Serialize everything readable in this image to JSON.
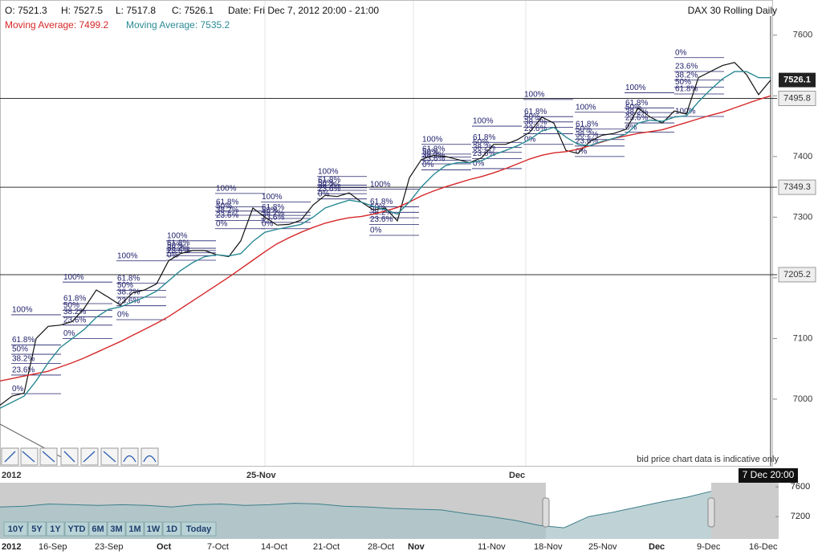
{
  "header": {
    "open": "O: 7521.3",
    "high": "H: 7527.5",
    "low": "L: 7517.8",
    "close": "C: 7526.1",
    "date": "Date: Fri Dec 7, 2012 20:00 - 21:00",
    "instrument": "DAX 30  Rolling Daily",
    "disclaimer": "bid price chart data is indicative only",
    "cursor_time": "7 Dec 20:00"
  },
  "chart_data": {
    "type": "line",
    "series": [
      {
        "color": "#111111",
        "values": [
          6990,
          7005,
          7010,
          7100,
          7120,
          7122,
          7128,
          7150,
          7180,
          7168,
          7155,
          7175,
          7180,
          7190,
          7228,
          7240,
          7245,
          7245,
          7238,
          7235,
          7261,
          7315,
          7300,
          7287,
          7288,
          7295,
          7320,
          7336,
          7334,
          7340,
          7325,
          7312,
          7315,
          7294,
          7365,
          7395,
          7402,
          7400,
          7395,
          7390,
          7398,
          7420,
          7420,
          7428,
          7440,
          7465,
          7455,
          7410,
          7405,
          7425,
          7435,
          7438,
          7445,
          7480,
          7465,
          7455,
          7475,
          7470,
          7530,
          7540,
          7550,
          7555,
          7535,
          7502,
          7526
        ]
      },
      {
        "name": "Moving Average: 7499.2",
        "color": "#d62728",
        "values": [
          7030,
          7034,
          7038,
          7042,
          7046,
          7053,
          7060,
          7068,
          7077,
          7086,
          7095,
          7105,
          7115,
          7125,
          7136,
          7149,
          7162,
          7175,
          7188,
          7201,
          7215,
          7229,
          7243,
          7256,
          7266,
          7275,
          7283,
          7290,
          7295,
          7299,
          7301,
          7305,
          7310,
          7316,
          7325,
          7335,
          7343,
          7350,
          7356,
          7362,
          7367,
          7373,
          7380,
          7388,
          7396,
          7402,
          7406,
          7408,
          7412,
          7418,
          7424,
          7430,
          7434,
          7438,
          7441,
          7444,
          7450,
          7456,
          7462,
          7468,
          7473,
          7480,
          7487,
          7494,
          7500
        ]
      },
      {
        "name": "Moving Average: 7535.2",
        "color": "#2a8a94",
        "values": [
          6985,
          6995,
          7005,
          7030,
          7060,
          7085,
          7100,
          7115,
          7135,
          7148,
          7152,
          7160,
          7168,
          7178,
          7195,
          7212,
          7225,
          7235,
          7238,
          7236,
          7240,
          7260,
          7275,
          7280,
          7284,
          7288,
          7300,
          7315,
          7322,
          7328,
          7325,
          7318,
          7312,
          7305,
          7325,
          7350,
          7370,
          7385,
          7390,
          7390,
          7393,
          7403,
          7410,
          7418,
          7428,
          7442,
          7448,
          7432,
          7420,
          7418,
          7425,
          7430,
          7437,
          7455,
          7460,
          7458,
          7465,
          7467,
          7490,
          7510,
          7528,
          7540,
          7540,
          7530,
          7530
        ]
      }
    ],
    "ylim": [
      6890,
      7658
    ],
    "yticks": [
      7000,
      7100,
      7200,
      7300,
      7400,
      7500,
      7600
    ],
    "current_price": 7526.1,
    "levels": [
      7495.8,
      7349.3,
      7205.2
    ],
    "x_labels": [
      "2012",
      "25-Nov",
      "Dec"
    ],
    "fib_levels": [
      {
        "value": 100,
        "label": "100%"
      },
      {
        "value": 61.8,
        "label": "61.8%"
      },
      {
        "value": 50,
        "label": "50%"
      },
      {
        "value": 38.2,
        "label": "38.2%"
      },
      {
        "value": 23.6,
        "label": "23.6%"
      },
      {
        "value": 0,
        "label": "0%"
      }
    ],
    "fibs": [
      {
        "high": 7139,
        "low": 7009
      },
      {
        "high": 7193,
        "low": 7100
      },
      {
        "high": 7228,
        "low": 7131
      },
      {
        "high": 7261,
        "low": 7229
      },
      {
        "high": 7339,
        "low": 7281
      },
      {
        "high": 7325,
        "low": 7281
      },
      {
        "high": 7367,
        "low": 7330
      },
      {
        "high": 7346,
        "low": 7270
      },
      {
        "high": 7420,
        "low": 7378
      },
      {
        "high": 7450,
        "low": 7380
      },
      {
        "high": 7494,
        "low": 7420
      },
      {
        "high": 7473,
        "low": 7400
      },
      {
        "high": 7505,
        "low": 7440
      },
      {
        "high": 7563,
        "low": 7466,
        "reversed": true
      }
    ]
  },
  "navigator": {
    "values": [
      7330,
      7340,
      7370,
      7360,
      7350,
      7360,
      7350,
      7330,
      7360,
      7370,
      7350,
      7360,
      7380,
      7370,
      7340,
      7330,
      7310,
      7300,
      7290,
      7240,
      7200,
      7150,
      7080,
      7050,
      7200,
      7260,
      7330,
      7400,
      7460,
      7540
    ],
    "ylim": [
      6900,
      7656
    ],
    "yticks": [
      7200,
      7600
    ],
    "labels": [
      "2012",
      "16-Sep",
      "23-Sep",
      "Oct",
      "7-Oct",
      "14-Oct",
      "21-Oct",
      "28-Oct",
      "Nov",
      "11-Nov",
      "18-Nov",
      "25-Nov",
      "Dec",
      "9-Dec",
      "16-Dec"
    ],
    "buttons": [
      "10Y",
      "5Y",
      "1Y",
      "YTD",
      "6M",
      "3M",
      "1M",
      "1W",
      "1D",
      "Today"
    ]
  }
}
